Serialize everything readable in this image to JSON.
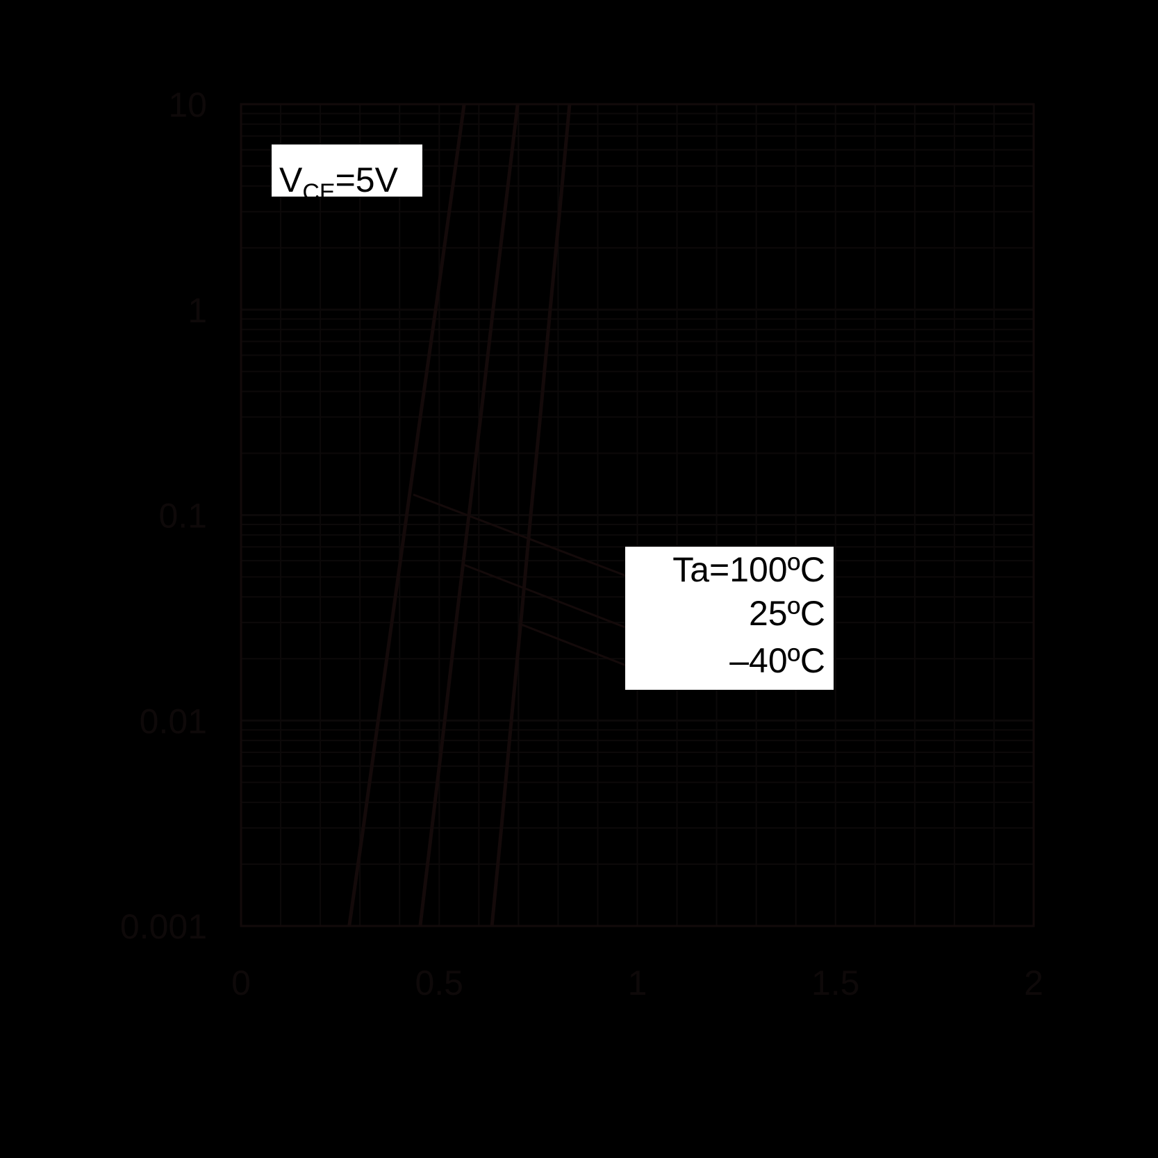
{
  "chart_data": {
    "type": "line",
    "title": "",
    "xlabel": "",
    "ylabel": "",
    "xlim": [
      0,
      2
    ],
    "ylim": [
      0.001,
      10
    ],
    "y_scale": "log",
    "grid": true,
    "x_ticks": [
      "0",
      "0.5",
      "1",
      "1.5",
      "2"
    ],
    "y_ticks": [
      "10",
      "1",
      "0.1",
      "0.01",
      "0.001"
    ],
    "background": "#000000",
    "line_color": "#140a0a",
    "grid_color": "#0c0909",
    "condition_label": {
      "prefix": "V",
      "subscript": "CE",
      "suffix": "=5V"
    },
    "series": [
      {
        "name": "Ta=100ºC",
        "x": [
          0.273,
          0.31,
          0.346,
          0.382,
          0.418,
          0.454,
          0.491,
          0.527,
          0.563
        ],
        "y": [
          0.001,
          0.00316,
          0.01,
          0.0316,
          0.1,
          0.316,
          1,
          3.16,
          10
        ]
      },
      {
        "name": "25ºC",
        "x": [
          0.452,
          0.483,
          0.514,
          0.544,
          0.575,
          0.606,
          0.636,
          0.667,
          0.698
        ],
        "y": [
          0.001,
          0.00316,
          0.01,
          0.0316,
          0.1,
          0.316,
          1,
          3.16,
          10
        ]
      },
      {
        "name": "–40ºC",
        "x": [
          0.633,
          0.658,
          0.682,
          0.707,
          0.731,
          0.756,
          0.78,
          0.805,
          0.829
        ],
        "y": [
          0.001,
          0.00316,
          0.01,
          0.0316,
          0.1,
          0.316,
          1,
          3.16,
          10
        ]
      }
    ],
    "legend_placement": "center-right"
  }
}
